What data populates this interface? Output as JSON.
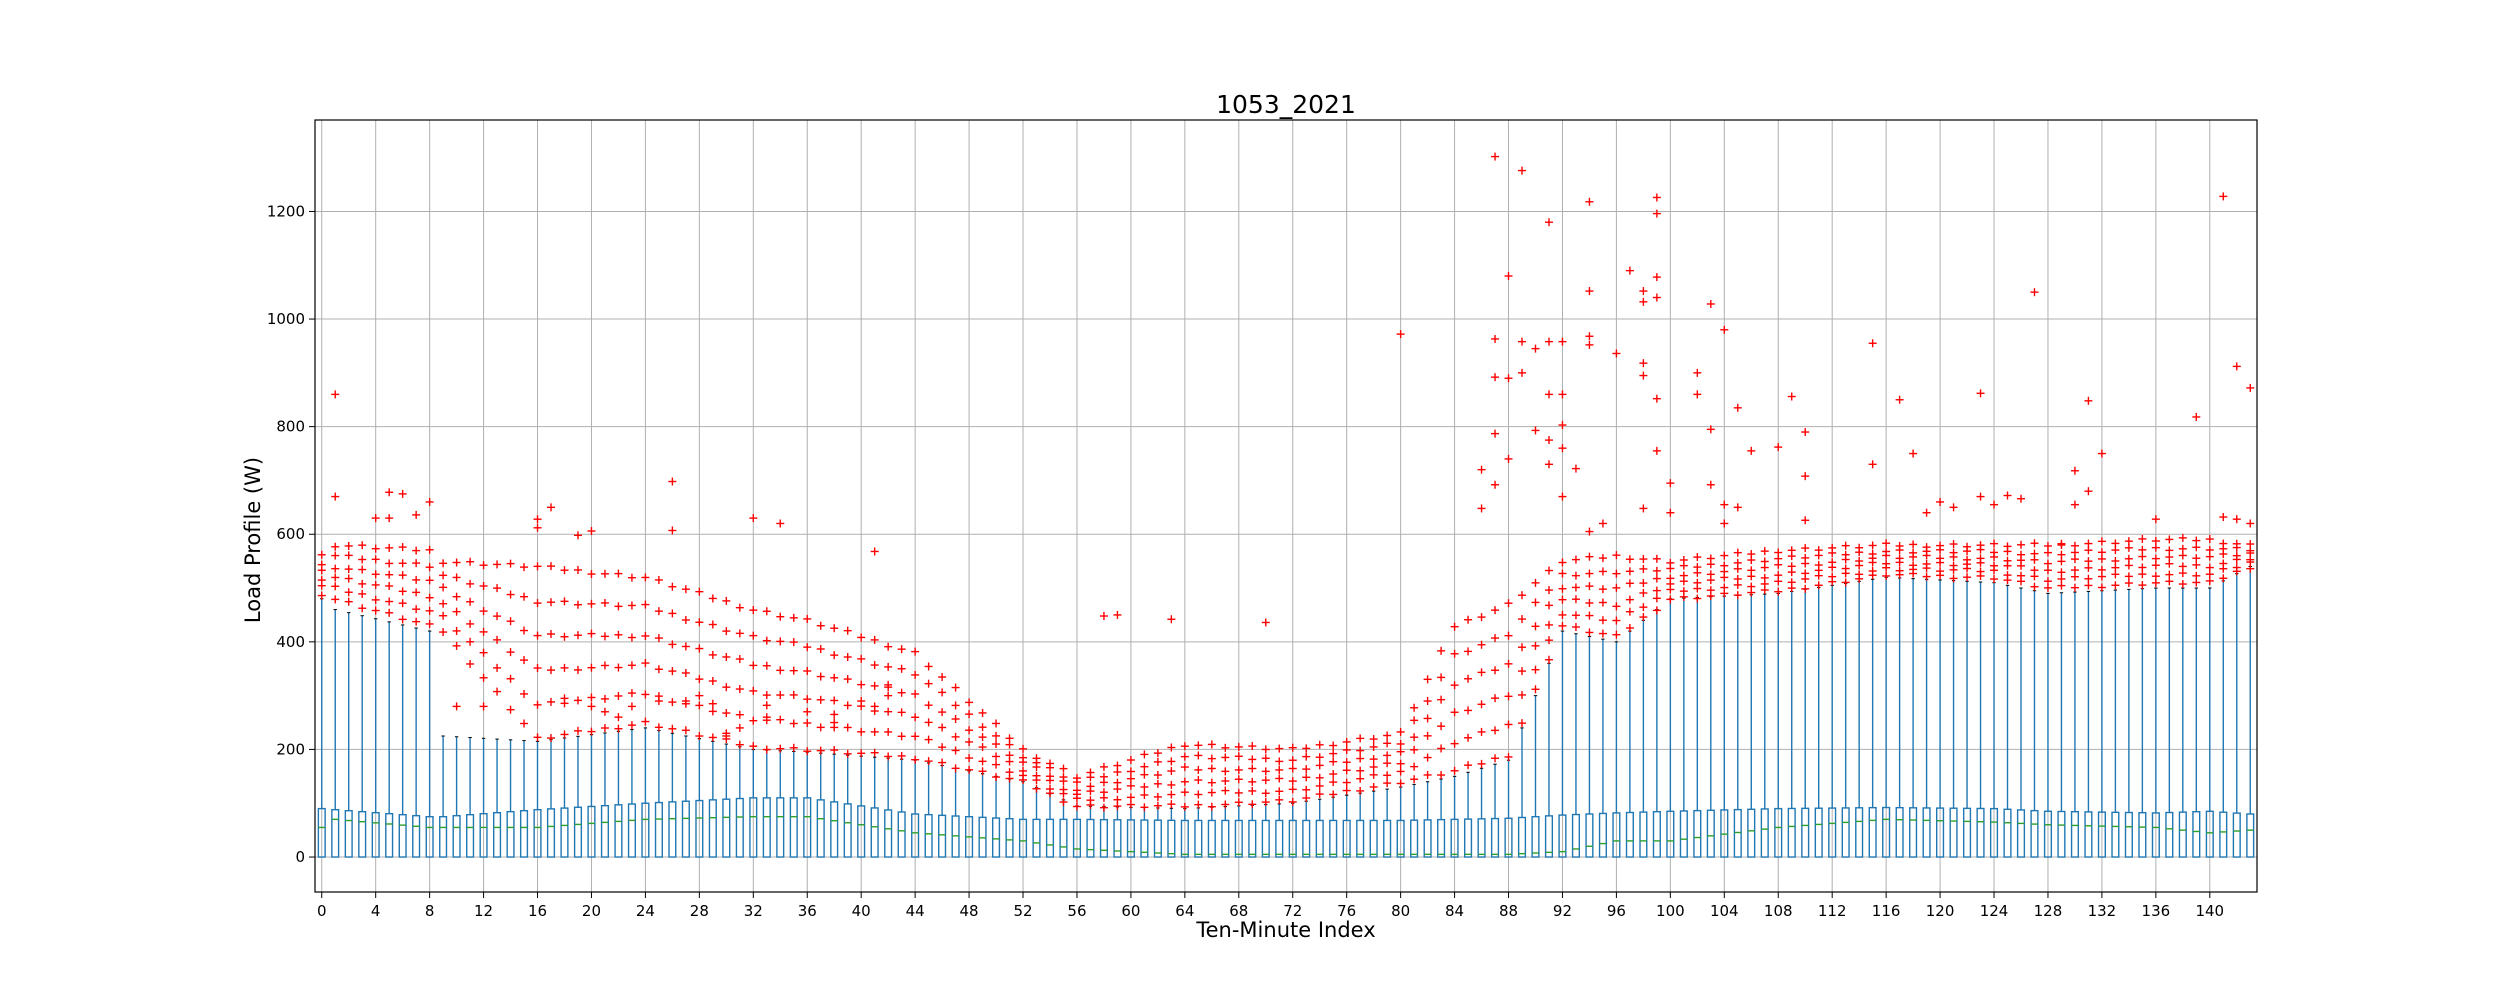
{
  "chart_data": {
    "type": "box",
    "title": "1053_2021",
    "xlabel": "Ten-Minute Index",
    "ylabel": "Load Profile (W)",
    "xlim": [
      -0.5,
      143.5
    ],
    "ylim": [
      -65,
      1370
    ],
    "x_ticks": [
      0,
      4,
      8,
      12,
      16,
      20,
      24,
      28,
      32,
      36,
      40,
      44,
      48,
      52,
      56,
      60,
      64,
      68,
      72,
      76,
      80,
      84,
      88,
      92,
      96,
      100,
      104,
      108,
      112,
      116,
      120,
      124,
      128,
      132,
      136,
      140
    ],
    "y_ticks": [
      0,
      200,
      400,
      600,
      800,
      1000,
      1200
    ],
    "grid": true,
    "colors": {
      "box": "#1f77b4",
      "median": "#2ca02c",
      "flier": "#ff0000",
      "grid": "#b0b0b0"
    },
    "anchors": [
      {
        "x": 0,
        "q1": 0,
        "med": 55,
        "q3": 90,
        "whislo": 0,
        "whishi": 480,
        "flier_lo": 490,
        "flier_hi": 560
      },
      {
        "x": 1,
        "q1": 0,
        "med": 70,
        "q3": 88,
        "whislo": 0,
        "whishi": 460,
        "flier_lo": 480,
        "flier_hi": 580
      },
      {
        "x": 8,
        "q1": 0,
        "med": 55,
        "q3": 75,
        "whislo": 0,
        "whishi": 420,
        "flier_lo": 430,
        "flier_hi": 570
      },
      {
        "x": 9,
        "q1": 0,
        "med": 55,
        "q3": 75,
        "whislo": 0,
        "whishi": 225,
        "flier_lo": 420,
        "flier_hi": 550
      },
      {
        "x": 16,
        "q1": 0,
        "med": 55,
        "q3": 88,
        "whislo": 0,
        "whishi": 215,
        "flier_lo": 220,
        "flier_hi": 540
      },
      {
        "x": 24,
        "q1": 0,
        "med": 70,
        "q3": 100,
        "whislo": 0,
        "whishi": 240,
        "flier_lo": 250,
        "flier_hi": 520
      },
      {
        "x": 32,
        "q1": 0,
        "med": 75,
        "q3": 110,
        "whislo": 0,
        "whishi": 200,
        "flier_lo": 205,
        "flier_hi": 460
      },
      {
        "x": 36,
        "q1": 0,
        "med": 75,
        "q3": 110,
        "whislo": 0,
        "whishi": 195,
        "flier_lo": 200,
        "flier_hi": 440
      },
      {
        "x": 44,
        "q1": 0,
        "med": 45,
        "q3": 80,
        "whislo": 0,
        "whishi": 180,
        "flier_lo": 185,
        "flier_hi": 380
      },
      {
        "x": 52,
        "q1": 0,
        "med": 30,
        "q3": 70,
        "whislo": 0,
        "whishi": 140,
        "flier_lo": 140,
        "flier_hi": 200
      },
      {
        "x": 56,
        "q1": 0,
        "med": 15,
        "q3": 70,
        "whislo": 0,
        "whishi": 95,
        "flier_lo": 95,
        "flier_hi": 150
      },
      {
        "x": 64,
        "q1": 0,
        "med": 5,
        "q3": 68,
        "whislo": 0,
        "whishi": 90,
        "flier_lo": 95,
        "flier_hi": 210
      },
      {
        "x": 72,
        "q1": 0,
        "med": 5,
        "q3": 68,
        "whislo": 0,
        "whishi": 100,
        "flier_lo": 105,
        "flier_hi": 200
      },
      {
        "x": 80,
        "q1": 0,
        "med": 5,
        "q3": 68,
        "whislo": 0,
        "whishi": 130,
        "flier_lo": 140,
        "flier_hi": 230
      },
      {
        "x": 84,
        "q1": 0,
        "med": 5,
        "q3": 70,
        "whislo": 0,
        "whishi": 150,
        "flier_lo": 160,
        "flier_hi": 430
      },
      {
        "x": 88,
        "q1": 0,
        "med": 5,
        "q3": 72,
        "whislo": 0,
        "whishi": 180,
        "flier_lo": 190,
        "flier_hi": 470
      },
      {
        "x": 92,
        "q1": 0,
        "med": 10,
        "q3": 78,
        "whislo": 0,
        "whishi": 420,
        "flier_lo": 430,
        "flier_hi": 550
      },
      {
        "x": 96,
        "q1": 0,
        "med": 30,
        "q3": 82,
        "whislo": 0,
        "whishi": 400,
        "flier_lo": 410,
        "flier_hi": 560
      },
      {
        "x": 100,
        "q1": 0,
        "med": 30,
        "q3": 85,
        "whislo": 0,
        "whishi": 480,
        "flier_lo": 480,
        "flier_hi": 550
      },
      {
        "x": 108,
        "q1": 0,
        "med": 55,
        "q3": 90,
        "whislo": 0,
        "whishi": 490,
        "flier_lo": 495,
        "flier_hi": 570
      },
      {
        "x": 116,
        "q1": 0,
        "med": 70,
        "q3": 92,
        "whislo": 0,
        "whishi": 520,
        "flier_lo": 525,
        "flier_hi": 580
      },
      {
        "x": 124,
        "q1": 0,
        "med": 65,
        "q3": 90,
        "whislo": 0,
        "whishi": 510,
        "flier_lo": 520,
        "flier_hi": 580
      },
      {
        "x": 128,
        "q1": 0,
        "med": 60,
        "q3": 85,
        "whislo": 0,
        "whishi": 490,
        "flier_lo": 500,
        "flier_hi": 580
      },
      {
        "x": 136,
        "q1": 0,
        "med": 55,
        "q3": 82,
        "whislo": 0,
        "whishi": 500,
        "flier_lo": 510,
        "flier_hi": 590
      },
      {
        "x": 140,
        "q1": 0,
        "med": 45,
        "q3": 85,
        "whislo": 0,
        "whishi": 500,
        "flier_lo": 510,
        "flier_hi": 590
      },
      {
        "x": 143,
        "q1": 0,
        "med": 50,
        "q3": 80,
        "whislo": 0,
        "whishi": 540,
        "flier_lo": 540,
        "flier_hi": 580
      }
    ],
    "extra_outliers": [
      [
        1,
        860
      ],
      [
        1,
        670
      ],
      [
        4,
        630
      ],
      [
        5,
        630
      ],
      [
        5,
        678
      ],
      [
        6,
        675
      ],
      [
        7,
        636
      ],
      [
        8,
        660
      ],
      [
        17,
        650
      ],
      [
        16,
        628
      ],
      [
        16,
        612
      ],
      [
        20,
        606
      ],
      [
        19,
        598
      ],
      [
        26,
        698
      ],
      [
        26,
        607
      ],
      [
        32,
        630
      ],
      [
        34,
        620
      ],
      [
        41,
        568
      ],
      [
        58,
        448
      ],
      [
        59,
        450
      ],
      [
        63,
        442
      ],
      [
        70,
        436
      ],
      [
        80,
        972
      ],
      [
        86,
        648
      ],
      [
        86,
        720
      ],
      [
        87,
        1302
      ],
      [
        87,
        963
      ],
      [
        87,
        892
      ],
      [
        87,
        787
      ],
      [
        87,
        692
      ],
      [
        88,
        1080
      ],
      [
        88,
        890
      ],
      [
        88,
        740
      ],
      [
        89,
        1276
      ],
      [
        89,
        958
      ],
      [
        89,
        900
      ],
      [
        90,
        945
      ],
      [
        90,
        793
      ],
      [
        91,
        1180
      ],
      [
        91,
        958
      ],
      [
        91,
        860
      ],
      [
        91,
        775
      ],
      [
        91,
        730
      ],
      [
        92,
        958
      ],
      [
        92,
        860
      ],
      [
        92,
        803
      ],
      [
        92,
        760
      ],
      [
        92,
        670
      ],
      [
        93,
        722
      ],
      [
        94,
        1218
      ],
      [
        94,
        1052
      ],
      [
        94,
        968
      ],
      [
        94,
        952
      ],
      [
        94,
        605
      ],
      [
        95,
        620
      ],
      [
        96,
        936
      ],
      [
        97,
        1090
      ],
      [
        98,
        1052
      ],
      [
        98,
        1032
      ],
      [
        98,
        918
      ],
      [
        98,
        895
      ],
      [
        98,
        648
      ],
      [
        99,
        1226
      ],
      [
        99,
        1196
      ],
      [
        99,
        1078
      ],
      [
        99,
        1040
      ],
      [
        99,
        852
      ],
      [
        99,
        755
      ],
      [
        100,
        695
      ],
      [
        100,
        640
      ],
      [
        102,
        900
      ],
      [
        102,
        860
      ],
      [
        103,
        1028
      ],
      [
        103,
        795
      ],
      [
        103,
        692
      ],
      [
        104,
        980
      ],
      [
        104,
        655
      ],
      [
        104,
        620
      ],
      [
        105,
        835
      ],
      [
        105,
        650
      ],
      [
        106,
        755
      ],
      [
        108,
        762
      ],
      [
        109,
        856
      ],
      [
        110,
        790
      ],
      [
        110,
        708
      ],
      [
        110,
        626
      ],
      [
        115,
        955
      ],
      [
        115,
        730
      ],
      [
        117,
        850
      ],
      [
        118,
        750
      ],
      [
        119,
        640
      ],
      [
        120,
        660
      ],
      [
        121,
        650
      ],
      [
        123,
        862
      ],
      [
        123,
        670
      ],
      [
        124,
        655
      ],
      [
        125,
        672
      ],
      [
        126,
        666
      ],
      [
        127,
        1050
      ],
      [
        129,
        580
      ],
      [
        130,
        718
      ],
      [
        130,
        655
      ],
      [
        131,
        848
      ],
      [
        131,
        680
      ],
      [
        132,
        750
      ],
      [
        136,
        628
      ],
      [
        139,
        818
      ],
      [
        141,
        1228
      ],
      [
        141,
        632
      ],
      [
        142,
        912
      ],
      [
        142,
        628
      ],
      [
        143,
        872
      ],
      [
        143,
        620
      ],
      [
        30,
        225
      ],
      [
        30,
        230
      ],
      [
        31,
        240
      ],
      [
        33,
        260
      ],
      [
        33,
        282
      ],
      [
        36,
        270
      ],
      [
        38,
        250
      ],
      [
        38,
        265
      ],
      [
        40,
        290
      ],
      [
        41,
        280
      ],
      [
        42,
        300
      ],
      [
        42,
        320
      ],
      [
        25,
        290
      ],
      [
        27,
        290
      ],
      [
        28,
        300
      ],
      [
        29,
        285
      ],
      [
        10,
        280
      ],
      [
        12,
        280
      ],
      [
        18,
        295
      ],
      [
        20,
        280
      ],
      [
        21,
        270
      ],
      [
        22,
        260
      ],
      [
        23,
        280
      ]
    ]
  }
}
